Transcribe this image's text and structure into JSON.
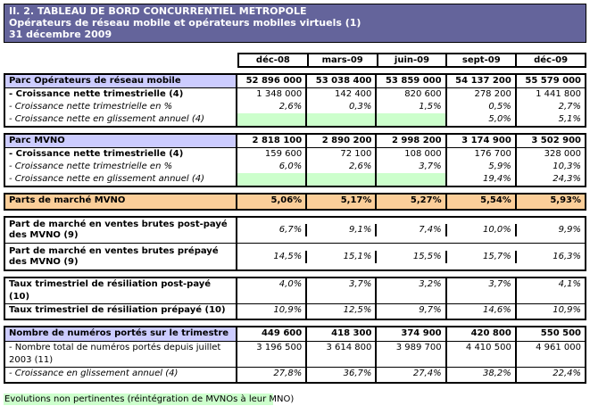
{
  "title": {
    "line1": "II. 2. TABLEAU DE BORD CONCURRENTIEL METROPOLE",
    "line2": "Opérateurs de réseau mobile et opérateurs mobiles virtuels (1)",
    "line3": "31 décembre  2009"
  },
  "colors": {
    "title_band": "#64649B",
    "section_header": "#CCCCFF",
    "green_cell": "#CCFFCC",
    "highlight_row": "#FBCE99",
    "border": "#000000"
  },
  "table": {
    "columns": [
      "déc-08",
      "mars-09",
      "juin-09",
      "sept-09",
      "déc-09"
    ],
    "blocks": [
      {
        "name": "parc-operateurs-reseau-mobile",
        "rows": [
          {
            "label": "Parc Opérateurs de réseau mobile",
            "style": "section",
            "value_style": "bold",
            "border_bottom": true,
            "values": [
              "52 896 000",
              "53 038 400",
              "53 859 000",
              "54 137 200",
              "55 579 000"
            ]
          },
          {
            "label": "- Croissance nette trimestrielle (4)",
            "style": "bold",
            "value_style": "regular",
            "values": [
              "1 348 000",
              "142 400",
              "820 600",
              "278 200",
              "1 441 800"
            ]
          },
          {
            "label": "- Croissance nette trimestrielle en %",
            "style": "italic",
            "value_style": "italic",
            "values": [
              "2,6%",
              "0,3%",
              "1,5%",
              "0,5%",
              "2,7%"
            ]
          },
          {
            "label": "- Croissance nette en glissement annuel (4)",
            "style": "italic",
            "value_style": "italic",
            "green_empty": true,
            "values": [
              "",
              "",
              "",
              "5,0%",
              "5,1%"
            ]
          }
        ]
      },
      {
        "name": "parc-mvno",
        "rows": [
          {
            "label": "Parc MVNO",
            "style": "section",
            "value_style": "bold",
            "border_bottom": true,
            "values": [
              "2 818 100",
              "2 890 200",
              "2 998 200",
              "3 174 900",
              "3 502 900"
            ]
          },
          {
            "label": "- Croissance nette trimestrielle (4)",
            "style": "bold",
            "value_style": "regular",
            "values": [
              "159 600",
              "72 100",
              "108 000",
              "176 700",
              "328 000"
            ]
          },
          {
            "label": "- Croissance nette trimestrielle en %",
            "style": "italic",
            "value_style": "italic",
            "values": [
              "6,0%",
              "2,6%",
              "3,7%",
              "5,9%",
              "10,3%"
            ]
          },
          {
            "label": "- Croissance nette en glissement annuel (4)",
            "style": "italic",
            "value_style": "italic",
            "green_empty": true,
            "values": [
              "",
              "",
              "",
              "19,4%",
              "24,3%"
            ]
          }
        ]
      },
      {
        "name": "parts-de-marche-mvno",
        "rows": [
          {
            "label": "Parts de marché MVNO",
            "style": "highlight",
            "value_style": "bold",
            "mid": true,
            "values": [
              "5,06%",
              "5,17%",
              "5,27%",
              "5,54%",
              "5,93%"
            ]
          }
        ]
      },
      {
        "name": "parts-ventes-brutes-mvno",
        "rows": [
          {
            "label": "Part de marché en ventes brutes post-payé des MVNO (9)",
            "style": "bold",
            "value_style": "italic",
            "tall": true,
            "border_bottom": true,
            "values": [
              "6,7%",
              "9,1%",
              "7,4%",
              "10,0%",
              "9,9%"
            ]
          },
          {
            "label": "Part de marché en ventes brutes prépayé des MVNO (9)",
            "style": "bold",
            "value_style": "italic",
            "tall": true,
            "values": [
              "14,5%",
              "15,1%",
              "15,5%",
              "15,7%",
              "16,3%"
            ]
          }
        ]
      },
      {
        "name": "taux-resiliation",
        "rows": [
          {
            "label": "Taux trimestriel de résiliation post-payé (10)",
            "style": "bold",
            "value_style": "italic",
            "mid": true,
            "border_bottom": true,
            "values": [
              "4,0%",
              "3,7%",
              "3,2%",
              "3,7%",
              "4,1%"
            ]
          },
          {
            "label": "Taux trimestriel de résiliation prépayé (10)",
            "style": "bold",
            "value_style": "italic",
            "mid": true,
            "values": [
              "10,9%",
              "12,5%",
              "9,7%",
              "14,6%",
              "10,9%"
            ]
          }
        ]
      },
      {
        "name": "numeros-portes",
        "rows": [
          {
            "label": "Nombre de numéros portés sur le trimestre",
            "style": "section",
            "value_style": "bold",
            "mid": true,
            "border_bottom": true,
            "values": [
              "449 600",
              "418 300",
              "374 900",
              "420 800",
              "550 500"
            ]
          },
          {
            "label": "- Nombre total de numéros portés depuis juillet 2003 (11)",
            "style": "regular",
            "value_style": "regular",
            "mid": true,
            "border_bottom": true,
            "values": [
              "3 196 500",
              "3 614 800",
              "3 989 700",
              "4 410 500",
              "4 961 000"
            ]
          },
          {
            "label": "- Croissance en glissement annuel (4)",
            "style": "italic",
            "value_style": "italic",
            "mid": true,
            "values": [
              "27,8%",
              "36,7%",
              "27,4%",
              "38,2%",
              "22,4%"
            ]
          }
        ]
      }
    ]
  },
  "footer": {
    "note": "Evolutions non pertinentes (réintégration de MVNOs à leur MNO)"
  }
}
